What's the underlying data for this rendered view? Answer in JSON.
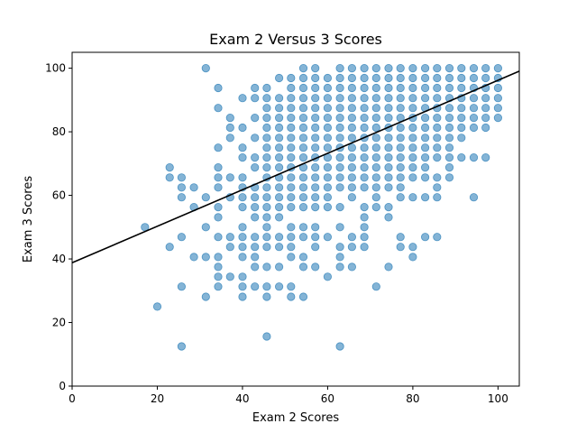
{
  "chart_data": {
    "type": "scatter",
    "title": "Exam 2 Versus 3 Scores",
    "xlabel": "Exam 2 Scores",
    "ylabel": "Exam 3 Scores",
    "xlim": [
      0,
      105
    ],
    "ylim": [
      0,
      105
    ],
    "xticks": [
      0,
      20,
      40,
      60,
      80,
      100
    ],
    "yticks": [
      0,
      20,
      40,
      60,
      80,
      100
    ],
    "grid": false,
    "point_color": "#1f77b4",
    "line_color": "#000000",
    "fit_line": {
      "intercept": 38.8,
      "slope": 0.574
    },
    "points": [
      [
        17.1,
        50.0
      ],
      [
        20.0,
        25.0
      ],
      [
        22.9,
        68.8
      ],
      [
        22.9,
        65.6
      ],
      [
        22.9,
        43.8
      ],
      [
        25.7,
        65.6
      ],
      [
        25.7,
        62.5
      ],
      [
        25.7,
        59.4
      ],
      [
        25.7,
        46.9
      ],
      [
        25.7,
        31.3
      ],
      [
        25.7,
        12.5
      ],
      [
        28.6,
        62.5
      ],
      [
        28.6,
        56.3
      ],
      [
        28.6,
        40.6
      ],
      [
        31.4,
        100.0
      ],
      [
        31.4,
        59.4
      ],
      [
        31.4,
        50.0
      ],
      [
        31.4,
        40.6
      ],
      [
        31.4,
        28.1
      ],
      [
        34.3,
        93.8
      ],
      [
        34.3,
        87.5
      ],
      [
        34.3,
        75.0
      ],
      [
        34.3,
        68.8
      ],
      [
        34.3,
        65.6
      ],
      [
        34.3,
        62.5
      ],
      [
        34.3,
        56.3
      ],
      [
        34.3,
        53.1
      ],
      [
        34.3,
        46.9
      ],
      [
        34.3,
        40.6
      ],
      [
        34.3,
        37.5
      ],
      [
        34.3,
        34.4
      ],
      [
        34.3,
        31.3
      ],
      [
        37.1,
        84.4
      ],
      [
        37.1,
        81.3
      ],
      [
        37.1,
        78.1
      ],
      [
        37.1,
        65.6
      ],
      [
        37.1,
        59.4
      ],
      [
        37.1,
        46.9
      ],
      [
        37.1,
        43.8
      ],
      [
        37.1,
        34.4
      ],
      [
        40.0,
        90.6
      ],
      [
        40.0,
        81.3
      ],
      [
        40.0,
        75.0
      ],
      [
        40.0,
        71.9
      ],
      [
        40.0,
        65.6
      ],
      [
        40.0,
        62.5
      ],
      [
        40.0,
        59.4
      ],
      [
        40.0,
        56.3
      ],
      [
        40.0,
        50.0
      ],
      [
        40.0,
        46.9
      ],
      [
        40.0,
        43.8
      ],
      [
        40.0,
        40.6
      ],
      [
        40.0,
        34.4
      ],
      [
        40.0,
        31.3
      ],
      [
        40.0,
        28.1
      ],
      [
        42.9,
        93.8
      ],
      [
        42.9,
        90.6
      ],
      [
        42.9,
        84.4
      ],
      [
        42.9,
        78.1
      ],
      [
        42.9,
        71.9
      ],
      [
        42.9,
        68.8
      ],
      [
        42.9,
        62.5
      ],
      [
        42.9,
        59.4
      ],
      [
        42.9,
        56.3
      ],
      [
        42.9,
        53.1
      ],
      [
        42.9,
        46.9
      ],
      [
        42.9,
        43.8
      ],
      [
        42.9,
        40.6
      ],
      [
        42.9,
        37.5
      ],
      [
        42.9,
        31.3
      ],
      [
        45.7,
        93.8
      ],
      [
        45.7,
        90.6
      ],
      [
        45.7,
        87.5
      ],
      [
        45.7,
        84.4
      ],
      [
        45.7,
        81.3
      ],
      [
        45.7,
        78.1
      ],
      [
        45.7,
        75.0
      ],
      [
        45.7,
        71.9
      ],
      [
        45.7,
        68.8
      ],
      [
        45.7,
        65.6
      ],
      [
        45.7,
        62.5
      ],
      [
        45.7,
        59.4
      ],
      [
        45.7,
        56.3
      ],
      [
        45.7,
        53.1
      ],
      [
        45.7,
        50.0
      ],
      [
        45.7,
        46.9
      ],
      [
        45.7,
        43.8
      ],
      [
        45.7,
        37.5
      ],
      [
        45.7,
        31.3
      ],
      [
        45.7,
        28.1
      ],
      [
        45.7,
        15.6
      ],
      [
        48.6,
        96.9
      ],
      [
        48.6,
        90.6
      ],
      [
        48.6,
        87.5
      ],
      [
        48.6,
        84.4
      ],
      [
        48.6,
        81.3
      ],
      [
        48.6,
        78.1
      ],
      [
        48.6,
        75.0
      ],
      [
        48.6,
        71.9
      ],
      [
        48.6,
        68.8
      ],
      [
        48.6,
        65.6
      ],
      [
        48.6,
        62.5
      ],
      [
        48.6,
        59.4
      ],
      [
        48.6,
        56.3
      ],
      [
        48.6,
        53.1
      ],
      [
        48.6,
        46.9
      ],
      [
        48.6,
        43.8
      ],
      [
        48.6,
        37.5
      ],
      [
        48.6,
        31.3
      ],
      [
        51.4,
        96.9
      ],
      [
        51.4,
        93.8
      ],
      [
        51.4,
        90.6
      ],
      [
        51.4,
        87.5
      ],
      [
        51.4,
        84.4
      ],
      [
        51.4,
        81.3
      ],
      [
        51.4,
        78.1
      ],
      [
        51.4,
        75.0
      ],
      [
        51.4,
        71.9
      ],
      [
        51.4,
        68.8
      ],
      [
        51.4,
        65.6
      ],
      [
        51.4,
        62.5
      ],
      [
        51.4,
        59.4
      ],
      [
        51.4,
        56.3
      ],
      [
        51.4,
        50.0
      ],
      [
        51.4,
        46.9
      ],
      [
        51.4,
        43.8
      ],
      [
        51.4,
        40.6
      ],
      [
        51.4,
        31.3
      ],
      [
        51.4,
        28.1
      ],
      [
        54.3,
        100.0
      ],
      [
        54.3,
        96.9
      ],
      [
        54.3,
        93.8
      ],
      [
        54.3,
        90.6
      ],
      [
        54.3,
        87.5
      ],
      [
        54.3,
        84.4
      ],
      [
        54.3,
        81.3
      ],
      [
        54.3,
        78.1
      ],
      [
        54.3,
        75.0
      ],
      [
        54.3,
        71.9
      ],
      [
        54.3,
        68.8
      ],
      [
        54.3,
        65.6
      ],
      [
        54.3,
        62.5
      ],
      [
        54.3,
        59.4
      ],
      [
        54.3,
        56.3
      ],
      [
        54.3,
        50.0
      ],
      [
        54.3,
        46.9
      ],
      [
        54.3,
        40.6
      ],
      [
        54.3,
        37.5
      ],
      [
        54.3,
        28.1
      ],
      [
        57.1,
        100.0
      ],
      [
        57.1,
        96.9
      ],
      [
        57.1,
        93.8
      ],
      [
        57.1,
        90.6
      ],
      [
        57.1,
        87.5
      ],
      [
        57.1,
        84.4
      ],
      [
        57.1,
        81.3
      ],
      [
        57.1,
        78.1
      ],
      [
        57.1,
        75.0
      ],
      [
        57.1,
        71.9
      ],
      [
        57.1,
        68.8
      ],
      [
        57.1,
        65.6
      ],
      [
        57.1,
        62.5
      ],
      [
        57.1,
        59.4
      ],
      [
        57.1,
        56.3
      ],
      [
        57.1,
        50.0
      ],
      [
        57.1,
        46.9
      ],
      [
        57.1,
        43.8
      ],
      [
        57.1,
        37.5
      ],
      [
        60.0,
        96.9
      ],
      [
        60.0,
        93.8
      ],
      [
        60.0,
        90.6
      ],
      [
        60.0,
        87.5
      ],
      [
        60.0,
        84.4
      ],
      [
        60.0,
        81.3
      ],
      [
        60.0,
        78.1
      ],
      [
        60.0,
        75.0
      ],
      [
        60.0,
        71.9
      ],
      [
        60.0,
        68.8
      ],
      [
        60.0,
        65.6
      ],
      [
        60.0,
        62.5
      ],
      [
        60.0,
        59.4
      ],
      [
        60.0,
        56.3
      ],
      [
        60.0,
        46.9
      ],
      [
        60.0,
        34.4
      ],
      [
        62.9,
        100.0
      ],
      [
        62.9,
        96.9
      ],
      [
        62.9,
        93.8
      ],
      [
        62.9,
        90.6
      ],
      [
        62.9,
        87.5
      ],
      [
        62.9,
        84.4
      ],
      [
        62.9,
        81.3
      ],
      [
        62.9,
        78.1
      ],
      [
        62.9,
        75.0
      ],
      [
        62.9,
        71.9
      ],
      [
        62.9,
        68.8
      ],
      [
        62.9,
        65.6
      ],
      [
        62.9,
        62.5
      ],
      [
        62.9,
        56.3
      ],
      [
        62.9,
        50.0
      ],
      [
        62.9,
        43.8
      ],
      [
        62.9,
        40.6
      ],
      [
        62.9,
        37.5
      ],
      [
        62.9,
        12.5
      ],
      [
        65.7,
        100.0
      ],
      [
        65.7,
        96.9
      ],
      [
        65.7,
        93.8
      ],
      [
        65.7,
        90.6
      ],
      [
        65.7,
        87.5
      ],
      [
        65.7,
        84.4
      ],
      [
        65.7,
        81.3
      ],
      [
        65.7,
        78.1
      ],
      [
        65.7,
        75.0
      ],
      [
        65.7,
        71.9
      ],
      [
        65.7,
        68.8
      ],
      [
        65.7,
        65.6
      ],
      [
        65.7,
        62.5
      ],
      [
        65.7,
        59.4
      ],
      [
        65.7,
        46.9
      ],
      [
        65.7,
        43.8
      ],
      [
        65.7,
        37.5
      ],
      [
        68.6,
        100.0
      ],
      [
        68.6,
        96.9
      ],
      [
        68.6,
        93.8
      ],
      [
        68.6,
        90.6
      ],
      [
        68.6,
        87.5
      ],
      [
        68.6,
        84.4
      ],
      [
        68.6,
        81.3
      ],
      [
        68.6,
        78.1
      ],
      [
        68.6,
        75.0
      ],
      [
        68.6,
        71.9
      ],
      [
        68.6,
        68.8
      ],
      [
        68.6,
        65.6
      ],
      [
        68.6,
        62.5
      ],
      [
        68.6,
        56.3
      ],
      [
        68.6,
        53.1
      ],
      [
        68.6,
        50.0
      ],
      [
        68.6,
        46.9
      ],
      [
        68.6,
        43.8
      ],
      [
        71.4,
        100.0
      ],
      [
        71.4,
        96.9
      ],
      [
        71.4,
        93.8
      ],
      [
        71.4,
        90.6
      ],
      [
        71.4,
        87.5
      ],
      [
        71.4,
        84.4
      ],
      [
        71.4,
        81.3
      ],
      [
        71.4,
        78.1
      ],
      [
        71.4,
        75.0
      ],
      [
        71.4,
        71.9
      ],
      [
        71.4,
        68.8
      ],
      [
        71.4,
        65.6
      ],
      [
        71.4,
        62.5
      ],
      [
        71.4,
        59.4
      ],
      [
        71.4,
        56.3
      ],
      [
        71.4,
        31.3
      ],
      [
        74.3,
        100.0
      ],
      [
        74.3,
        96.9
      ],
      [
        74.3,
        93.8
      ],
      [
        74.3,
        90.6
      ],
      [
        74.3,
        87.5
      ],
      [
        74.3,
        84.4
      ],
      [
        74.3,
        81.3
      ],
      [
        74.3,
        78.1
      ],
      [
        74.3,
        75.0
      ],
      [
        74.3,
        71.9
      ],
      [
        74.3,
        68.8
      ],
      [
        74.3,
        65.6
      ],
      [
        74.3,
        62.5
      ],
      [
        74.3,
        56.3
      ],
      [
        74.3,
        53.1
      ],
      [
        74.3,
        37.5
      ],
      [
        77.1,
        100.0
      ],
      [
        77.1,
        96.9
      ],
      [
        77.1,
        93.8
      ],
      [
        77.1,
        90.6
      ],
      [
        77.1,
        87.5
      ],
      [
        77.1,
        84.4
      ],
      [
        77.1,
        81.3
      ],
      [
        77.1,
        78.1
      ],
      [
        77.1,
        75.0
      ],
      [
        77.1,
        71.9
      ],
      [
        77.1,
        68.8
      ],
      [
        77.1,
        65.6
      ],
      [
        77.1,
        62.5
      ],
      [
        77.1,
        59.4
      ],
      [
        77.1,
        46.9
      ],
      [
        77.1,
        43.8
      ],
      [
        80.0,
        100.0
      ],
      [
        80.0,
        96.9
      ],
      [
        80.0,
        93.8
      ],
      [
        80.0,
        90.6
      ],
      [
        80.0,
        87.5
      ],
      [
        80.0,
        84.4
      ],
      [
        80.0,
        81.3
      ],
      [
        80.0,
        78.1
      ],
      [
        80.0,
        75.0
      ],
      [
        80.0,
        71.9
      ],
      [
        80.0,
        68.8
      ],
      [
        80.0,
        65.6
      ],
      [
        80.0,
        59.4
      ],
      [
        80.0,
        43.8
      ],
      [
        80.0,
        40.6
      ],
      [
        82.9,
        100.0
      ],
      [
        82.9,
        96.9
      ],
      [
        82.9,
        93.8
      ],
      [
        82.9,
        90.6
      ],
      [
        82.9,
        87.5
      ],
      [
        82.9,
        84.4
      ],
      [
        82.9,
        81.3
      ],
      [
        82.9,
        78.1
      ],
      [
        82.9,
        75.0
      ],
      [
        82.9,
        71.9
      ],
      [
        82.9,
        68.8
      ],
      [
        82.9,
        65.6
      ],
      [
        82.9,
        59.4
      ],
      [
        82.9,
        46.9
      ],
      [
        85.7,
        100.0
      ],
      [
        85.7,
        96.9
      ],
      [
        85.7,
        93.8
      ],
      [
        85.7,
        90.6
      ],
      [
        85.7,
        87.5
      ],
      [
        85.7,
        84.4
      ],
      [
        85.7,
        81.3
      ],
      [
        85.7,
        78.1
      ],
      [
        85.7,
        75.0
      ],
      [
        85.7,
        71.9
      ],
      [
        85.7,
        65.6
      ],
      [
        85.7,
        62.5
      ],
      [
        85.7,
        59.4
      ],
      [
        85.7,
        46.9
      ],
      [
        88.6,
        100.0
      ],
      [
        88.6,
        96.9
      ],
      [
        88.6,
        93.8
      ],
      [
        88.6,
        90.6
      ],
      [
        88.6,
        87.5
      ],
      [
        88.6,
        84.4
      ],
      [
        88.6,
        81.3
      ],
      [
        88.6,
        78.1
      ],
      [
        88.6,
        75.0
      ],
      [
        88.6,
        71.9
      ],
      [
        88.6,
        68.8
      ],
      [
        88.6,
        65.6
      ],
      [
        91.4,
        100.0
      ],
      [
        91.4,
        96.9
      ],
      [
        91.4,
        93.8
      ],
      [
        91.4,
        90.6
      ],
      [
        91.4,
        87.5
      ],
      [
        91.4,
        84.4
      ],
      [
        91.4,
        81.3
      ],
      [
        91.4,
        78.1
      ],
      [
        91.4,
        71.9
      ],
      [
        94.3,
        100.0
      ],
      [
        94.3,
        96.9
      ],
      [
        94.3,
        93.8
      ],
      [
        94.3,
        90.6
      ],
      [
        94.3,
        87.5
      ],
      [
        94.3,
        84.4
      ],
      [
        94.3,
        81.3
      ],
      [
        94.3,
        71.9
      ],
      [
        94.3,
        59.4
      ],
      [
        97.1,
        100.0
      ],
      [
        97.1,
        96.9
      ],
      [
        97.1,
        93.8
      ],
      [
        97.1,
        90.6
      ],
      [
        97.1,
        87.5
      ],
      [
        97.1,
        84.4
      ],
      [
        97.1,
        81.3
      ],
      [
        97.1,
        71.9
      ],
      [
        100.0,
        100.0
      ],
      [
        100.0,
        96.9
      ],
      [
        100.0,
        93.8
      ],
      [
        100.0,
        90.6
      ],
      [
        100.0,
        87.5
      ],
      [
        100.0,
        84.4
      ]
    ]
  }
}
